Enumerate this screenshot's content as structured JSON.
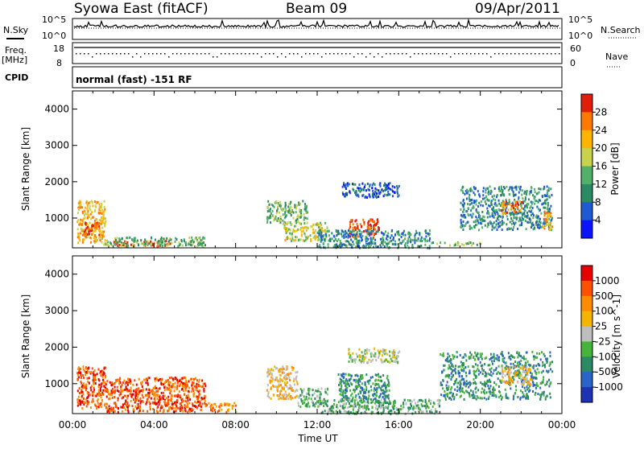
{
  "header": {
    "station": "Syowa East (fitACF)",
    "beam": "Beam 09",
    "date": "09/Apr/2011"
  },
  "status_panels": {
    "nsky_label": "N.Sky",
    "nsky_ticks": [
      "10^5",
      "10^0"
    ],
    "nsearch_label": "N.Search",
    "nsearch_ticks": [
      "10^5",
      "10^0"
    ],
    "freq_label": "Freq.",
    "freq_unit": "[MHz]",
    "freq_ticks": [
      "18",
      "8"
    ],
    "nave_label": "Nave",
    "nave_ticks": [
      "60",
      "0"
    ],
    "cpid_label": "CPID",
    "cpid_text": "normal (fast) -151 RF"
  },
  "chart_data": [
    {
      "type": "heatmap",
      "name": "power-panel",
      "ylabel": "Slant Range [km]",
      "xlabel": "",
      "x_ticks": [
        "00:00",
        "04:00",
        "08:00",
        "12:00",
        "16:00",
        "20:00",
        "00:00"
      ],
      "y_ticks": [
        1000,
        2000,
        3000,
        4000
      ],
      "ylim": [
        180,
        4500
      ],
      "xlim_hours": [
        0,
        24
      ],
      "colorbar": {
        "label": "Power [dB]",
        "ticks": [
          "4",
          "8",
          "12",
          "16",
          "20",
          "24",
          "28"
        ],
        "colors": [
          "#0a14ff",
          "#1f5ad2",
          "#2a8a64",
          "#52b06a",
          "#c8d24a",
          "#ffb400",
          "#ff7800",
          "#e11e0a"
        ]
      },
      "echo_regions": [
        {
          "t0": 0.2,
          "t1": 1.6,
          "r0": 350,
          "r1": 1500,
          "level": 5
        },
        {
          "t0": 0.5,
          "t1": 1.3,
          "r0": 500,
          "r1": 900,
          "level": 7
        },
        {
          "t0": 2.0,
          "t1": 3.0,
          "r0": 250,
          "r1": 400,
          "level": 7
        },
        {
          "t0": 3.4,
          "t1": 4.8,
          "r0": 250,
          "r1": 400,
          "level": 7
        },
        {
          "t0": 1.5,
          "t1": 6.5,
          "r0": 250,
          "r1": 500,
          "level": 3
        },
        {
          "t0": 9.5,
          "t1": 11.5,
          "r0": 900,
          "r1": 1500,
          "level": 3
        },
        {
          "t0": 10.3,
          "t1": 12.5,
          "r0": 400,
          "r1": 900,
          "level": 4
        },
        {
          "t0": 13.5,
          "t1": 15.0,
          "r0": 500,
          "r1": 1000,
          "level": 7
        },
        {
          "t0": 13.2,
          "t1": 16.0,
          "r0": 1600,
          "r1": 2000,
          "level": 1
        },
        {
          "t0": 12.0,
          "t1": 17.5,
          "r0": 200,
          "r1": 700,
          "level": 2
        },
        {
          "t0": 17.5,
          "t1": 20.0,
          "r0": 280,
          "r1": 360,
          "level": 3
        },
        {
          "t0": 19.0,
          "t1": 23.5,
          "r0": 700,
          "r1": 1900,
          "level": 2
        },
        {
          "t0": 21.0,
          "t1": 22.0,
          "r0": 1150,
          "r1": 1500,
          "level": 6
        },
        {
          "t0": 23.0,
          "t1": 23.5,
          "r0": 700,
          "r1": 1200,
          "level": 5
        }
      ]
    },
    {
      "type": "heatmap",
      "name": "velocity-panel",
      "ylabel": "Slant Range [km]",
      "xlabel": "Time UT",
      "x_ticks": [
        "00:00",
        "04:00",
        "08:00",
        "12:00",
        "16:00",
        "20:00",
        "00:00"
      ],
      "y_ticks": [
        1000,
        2000,
        3000,
        4000
      ],
      "ylim": [
        180,
        4500
      ],
      "xlim_hours": [
        0,
        24
      ],
      "colorbar": {
        "label": "Velocity [m s^-1]",
        "ticks": [
          "1000",
          "500",
          "100",
          "25",
          "-25",
          "-100",
          "-500",
          "-1000"
        ],
        "colors": [
          "#1e32b4",
          "#2a64c8",
          "#2a8a64",
          "#46b43a",
          "#bebebe",
          "#f5b400",
          "#ff8c00",
          "#ff5000",
          "#e60000"
        ]
      },
      "echo_regions": [
        {
          "t0": 0.2,
          "t1": 1.6,
          "r0": 350,
          "r1": 1500,
          "level": 7
        },
        {
          "t0": 1.6,
          "t1": 6.5,
          "r0": 250,
          "r1": 1200,
          "level": 7
        },
        {
          "t0": 6.5,
          "t1": 8.0,
          "r0": 250,
          "r1": 500,
          "level": 6
        },
        {
          "t0": 9.5,
          "t1": 11.0,
          "r0": 600,
          "r1": 1500,
          "level": 5
        },
        {
          "t0": 11.0,
          "t1": 12.5,
          "r0": 400,
          "r1": 900,
          "level": 3
        },
        {
          "t0": 13.0,
          "t1": 15.5,
          "r0": 500,
          "r1": 1300,
          "level": 2
        },
        {
          "t0": 13.5,
          "t1": 16.0,
          "r0": 1600,
          "r1": 2000,
          "level": 4
        },
        {
          "t0": 12.0,
          "t1": 18.0,
          "r0": 200,
          "r1": 600,
          "level": 3
        },
        {
          "t0": 18.0,
          "t1": 23.5,
          "r0": 600,
          "r1": 1900,
          "level": 2
        },
        {
          "t0": 21.0,
          "t1": 22.5,
          "r0": 1000,
          "r1": 1500,
          "level": 5
        }
      ]
    }
  ]
}
